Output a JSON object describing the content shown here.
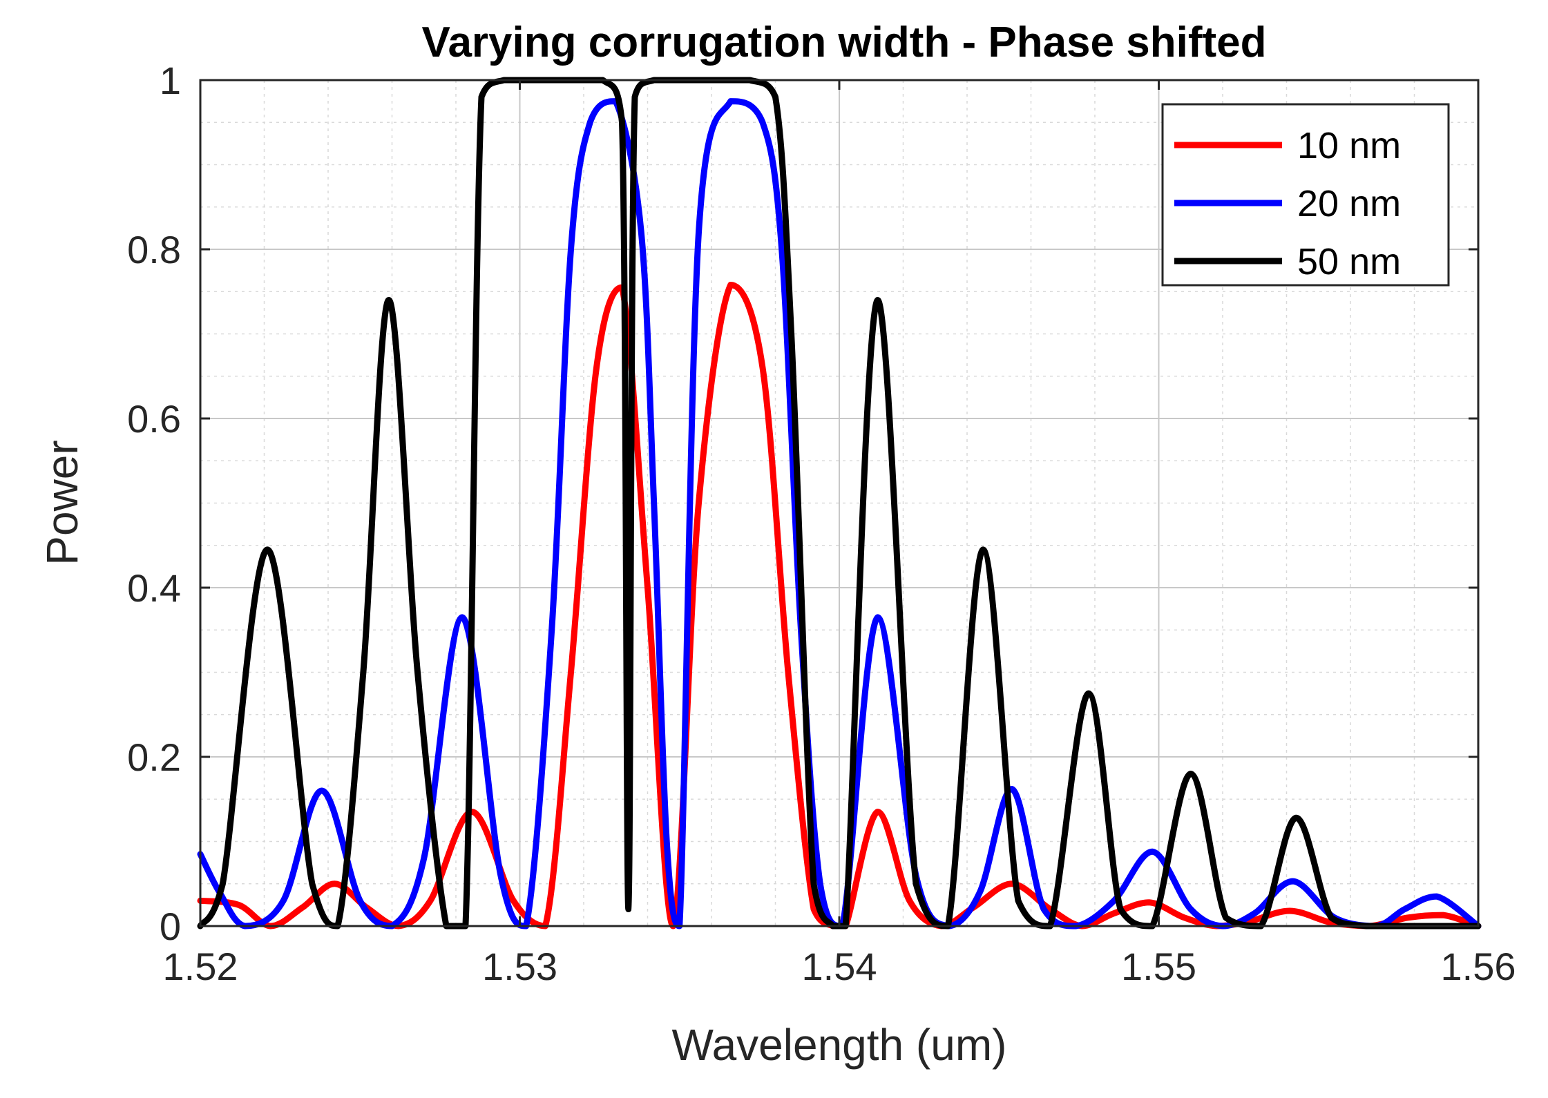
{
  "chart_data": {
    "type": "line",
    "title": "Varying corrugation width - Phase shifted",
    "xlabel": "Wavelength (um)",
    "ylabel": "Power",
    "xlim": [
      1.52,
      1.56
    ],
    "ylim": [
      0,
      1
    ],
    "xticks": [
      "1.52",
      "1.53",
      "1.54",
      "1.55",
      "1.56"
    ],
    "yticks": [
      "0",
      "0.2",
      "0.4",
      "0.6",
      "0.8",
      "1"
    ],
    "grid": true,
    "legend_position": "top-right",
    "series": [
      {
        "name": "10 nm",
        "color": "#ff0000",
        "x": [
          1.52,
          1.5212,
          1.5222,
          1.5232,
          1.5242,
          1.5252,
          1.5262,
          1.5272,
          1.5285,
          1.5298,
          1.5308,
          1.5316,
          1.5324,
          1.5332,
          1.534,
          1.5348,
          1.5356,
          1.5366,
          1.5376,
          1.5384,
          1.5392,
          1.5398,
          1.5402,
          1.5412,
          1.5422,
          1.5432,
          1.5442,
          1.5454,
          1.5466,
          1.5476,
          1.5486,
          1.5497,
          1.5508,
          1.5518,
          1.5528,
          1.5541,
          1.5554,
          1.5566,
          1.5578,
          1.5589,
          1.56
        ],
        "y": [
          0.03,
          0.025,
          0.0,
          0.022,
          0.05,
          0.022,
          0.0,
          0.03,
          0.135,
          0.03,
          0.0,
          0.3,
          0.66,
          0.755,
          0.4,
          0.0,
          0.5,
          0.758,
          0.66,
          0.3,
          0.02,
          0.0,
          0.0,
          0.135,
          0.03,
          0.0,
          0.022,
          0.05,
          0.02,
          0.0,
          0.015,
          0.028,
          0.01,
          0.0,
          0.005,
          0.018,
          0.004,
          0.0,
          0.01,
          0.013,
          0.0
        ]
      },
      {
        "name": "20 nm",
        "color": "#0000ff",
        "x": [
          1.52,
          1.5206,
          1.5214,
          1.5226,
          1.5238,
          1.525,
          1.526,
          1.527,
          1.5282,
          1.5294,
          1.5302,
          1.531,
          1.5316,
          1.5322,
          1.533,
          1.5338,
          1.5342,
          1.5346,
          1.535,
          1.5356,
          1.5366,
          1.5376,
          1.5382,
          1.5388,
          1.5394,
          1.5401,
          1.5412,
          1.5424,
          1.5434,
          1.5444,
          1.5454,
          1.5464,
          1.5474,
          1.5486,
          1.5498,
          1.551,
          1.552,
          1.553,
          1.5542,
          1.5555,
          1.5568,
          1.5577,
          1.5587,
          1.56
        ],
        "y": [
          0.085,
          0.04,
          0.0,
          0.03,
          0.16,
          0.03,
          0.0,
          0.08,
          0.365,
          0.06,
          0.0,
          0.35,
          0.8,
          0.95,
          0.975,
          0.82,
          0.5,
          0.1,
          0.0,
          0.82,
          0.975,
          0.95,
          0.8,
          0.35,
          0.05,
          0.0,
          0.365,
          0.06,
          0.0,
          0.04,
          0.162,
          0.02,
          0.0,
          0.03,
          0.088,
          0.02,
          0.0,
          0.015,
          0.053,
          0.01,
          0.0,
          0.02,
          0.035,
          0.0
        ]
      },
      {
        "name": "50 nm",
        "color": "#000000",
        "x": [
          1.52,
          1.5207,
          1.5221,
          1.5235,
          1.5243,
          1.5251,
          1.5259,
          1.5268,
          1.5277,
          1.5283,
          1.5288,
          1.5295,
          1.5305,
          1.5315,
          1.5326,
          1.5332,
          1.5334,
          1.5336,
          1.5342,
          1.5352,
          1.5362,
          1.5372,
          1.538,
          1.5385,
          1.5392,
          1.5398,
          1.5402,
          1.5412,
          1.5424,
          1.5434,
          1.5445,
          1.5456,
          1.5466,
          1.5478,
          1.5488,
          1.5498,
          1.551,
          1.5521,
          1.5532,
          1.5543,
          1.5554,
          1.5565,
          1.5576,
          1.5587,
          1.56
        ],
        "y": [
          0.0,
          0.05,
          0.445,
          0.05,
          0.0,
          0.3,
          0.74,
          0.3,
          0.0,
          0.0,
          0.98,
          1.0,
          1.0,
          1.0,
          1.0,
          0.95,
          0.02,
          0.98,
          1.0,
          1.0,
          1.0,
          1.0,
          0.98,
          0.7,
          0.05,
          0.0,
          0.0,
          0.74,
          0.05,
          0.0,
          0.445,
          0.03,
          0.0,
          0.275,
          0.02,
          0.0,
          0.18,
          0.01,
          0.0,
          0.128,
          0.01,
          0.0,
          0.0,
          0.0,
          0.0
        ]
      }
    ]
  }
}
